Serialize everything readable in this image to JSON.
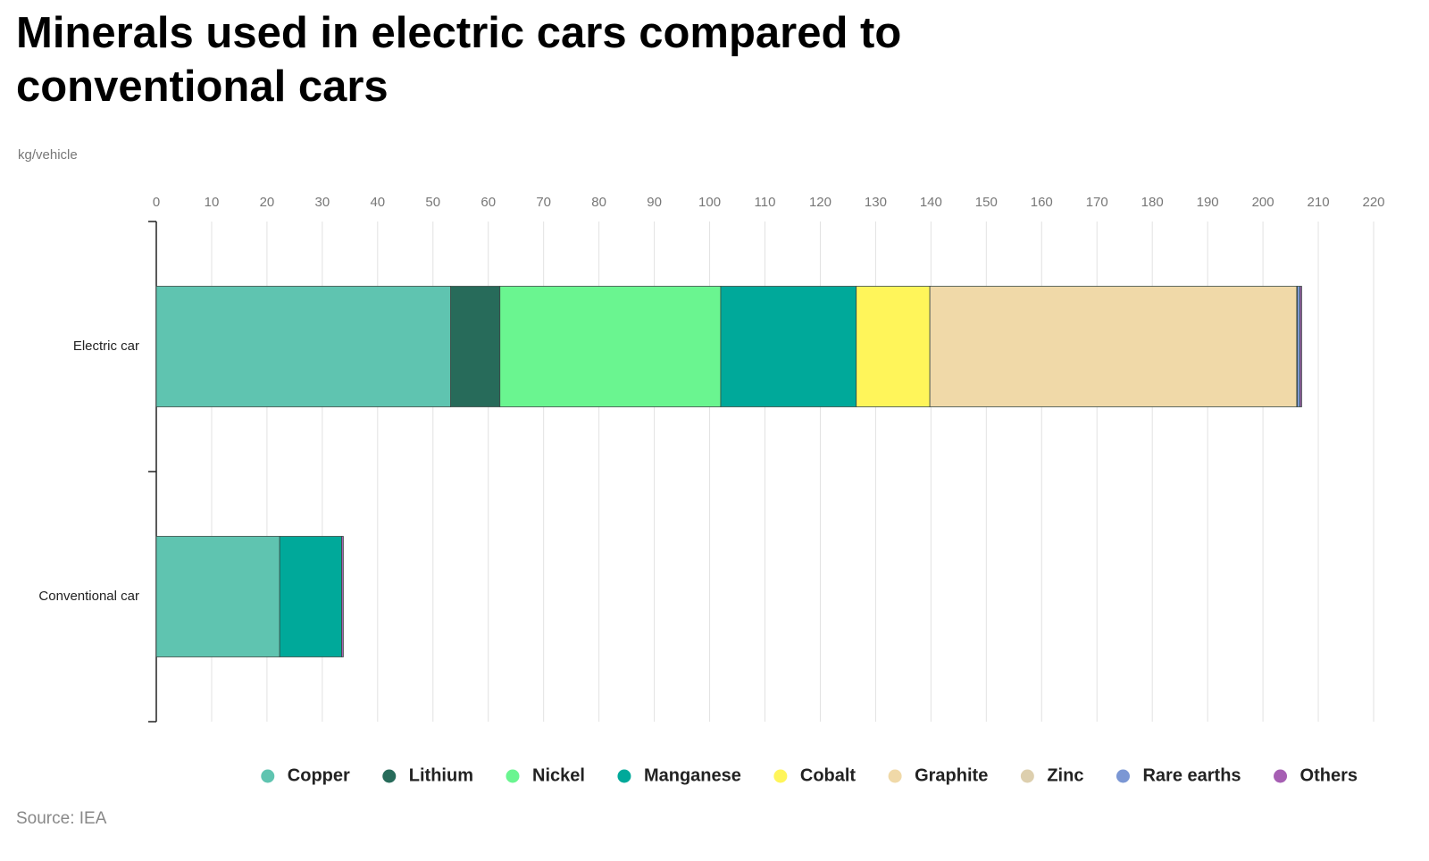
{
  "chart_data": {
    "type": "stacked-bar-horizontal",
    "title": [
      "Minerals used in electric cars compared to",
      "conventional cars"
    ],
    "subtitle": "kg/vehicle",
    "source": "Source: IEA",
    "categories": [
      "Electric car",
      "Conventional car"
    ],
    "series": [
      {
        "name": "Copper",
        "color": "#5fc4b0",
        "values": [
          53.2,
          22.3
        ]
      },
      {
        "name": "Lithium",
        "color": "#276b5a",
        "values": [
          8.9,
          0
        ]
      },
      {
        "name": "Nickel",
        "color": "#6af590",
        "values": [
          39.9,
          0
        ]
      },
      {
        "name": "Manganese",
        "color": "#00a99a",
        "values": [
          24.5,
          11.2
        ]
      },
      {
        "name": "Cobalt",
        "color": "#fff55a",
        "values": [
          13.3,
          0
        ]
      },
      {
        "name": "Graphite",
        "color": "#f0d9a8",
        "values": [
          66.3,
          0
        ]
      },
      {
        "name": "Zinc",
        "color": "#ddcfae",
        "values": [
          0.1,
          0
        ]
      },
      {
        "name": "Rare earths",
        "color": "#7b97d4",
        "values": [
          0.5,
          0
        ]
      },
      {
        "name": "Others",
        "color": "#a65fb3",
        "values": [
          0.3,
          0.3
        ]
      }
    ],
    "xlim": [
      0,
      220
    ],
    "xticks": [
      0,
      10,
      20,
      30,
      40,
      50,
      60,
      70,
      80,
      90,
      100,
      110,
      120,
      130,
      140,
      150,
      160,
      170,
      180,
      190,
      200,
      210,
      220
    ],
    "grid": true,
    "legend": "bottom"
  }
}
